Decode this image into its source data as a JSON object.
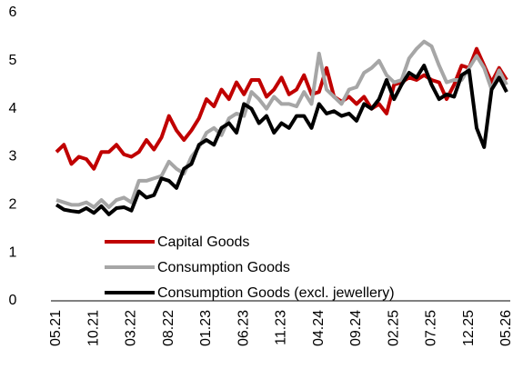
{
  "chart_data": {
    "type": "line",
    "categories": [
      "05.21",
      null,
      null,
      null,
      null,
      "10.21",
      null,
      null,
      null,
      null,
      "03.22",
      null,
      null,
      null,
      null,
      "08.22",
      null,
      null,
      null,
      null,
      "01.23",
      null,
      null,
      null,
      null,
      "06.23",
      null,
      null,
      null,
      null,
      "11.23",
      null,
      null,
      null,
      null,
      "04.24",
      null,
      null,
      null,
      null,
      "09.24",
      null,
      null,
      null,
      null,
      "02.25",
      null,
      null,
      null,
      null,
      "07.25",
      null,
      null,
      null,
      null,
      "12.25",
      null,
      null,
      null,
      null,
      "05.26"
    ],
    "series": [
      {
        "name": "Capital Goods",
        "color": "#c00000",
        "values": [
          3.1,
          3.25,
          2.85,
          3.0,
          2.95,
          2.75,
          3.1,
          3.1,
          3.25,
          3.05,
          3.0,
          3.1,
          3.35,
          3.15,
          3.4,
          3.85,
          3.55,
          3.35,
          3.55,
          3.8,
          4.2,
          4.05,
          4.4,
          4.2,
          4.55,
          4.3,
          4.6,
          4.6,
          4.25,
          4.4,
          4.65,
          4.3,
          4.4,
          4.7,
          4.3,
          4.35,
          4.85,
          4.25,
          4.15,
          4.25,
          4.1,
          4.25,
          4.0,
          4.1,
          3.9,
          4.5,
          4.55,
          4.65,
          4.6,
          4.7,
          4.6,
          4.55,
          4.2,
          4.5,
          4.9,
          4.85,
          5.25,
          4.9,
          4.55,
          4.85,
          4.6
        ]
      },
      {
        "name": "Consumption Goods",
        "color": "#a6a6a6",
        "values": [
          2.1,
          2.05,
          2.0,
          2.0,
          2.05,
          1.95,
          2.1,
          1.95,
          2.1,
          2.15,
          2.05,
          2.5,
          2.5,
          2.55,
          2.6,
          2.9,
          2.75,
          2.65,
          3.0,
          3.2,
          3.5,
          3.6,
          3.45,
          3.8,
          3.9,
          3.85,
          4.35,
          4.2,
          4.0,
          4.25,
          4.1,
          4.1,
          4.05,
          4.35,
          4.1,
          5.15,
          4.4,
          4.25,
          4.1,
          4.4,
          4.45,
          4.75,
          4.85,
          5.0,
          4.7,
          4.55,
          4.6,
          5.05,
          5.25,
          5.4,
          5.3,
          4.9,
          4.55,
          4.6,
          4.6,
          4.85,
          5.1,
          4.85,
          4.4,
          4.8,
          4.5
        ]
      },
      {
        "name": "Consumption Goods (excl. jewellery)",
        "color": "#000000",
        "values": [
          2.0,
          1.9,
          1.87,
          1.85,
          1.93,
          1.83,
          1.97,
          1.8,
          1.93,
          1.95,
          1.88,
          2.28,
          2.15,
          2.2,
          2.55,
          2.5,
          2.35,
          2.75,
          2.85,
          3.25,
          3.35,
          3.25,
          3.6,
          3.7,
          3.5,
          4.1,
          4.0,
          3.7,
          3.85,
          3.5,
          3.7,
          3.6,
          3.85,
          3.85,
          3.6,
          4.1,
          3.9,
          3.95,
          3.85,
          3.9,
          3.75,
          4.1,
          4.0,
          4.2,
          4.6,
          4.2,
          4.5,
          4.75,
          4.65,
          4.9,
          4.5,
          4.2,
          4.3,
          4.25,
          4.7,
          4.8,
          3.6,
          3.2,
          4.4,
          4.65,
          4.35
        ]
      }
    ],
    "ylim": [
      0,
      6
    ],
    "yticks": [
      0,
      1,
      2,
      3,
      4,
      5,
      6
    ],
    "grid": false,
    "legend": "lower center"
  }
}
